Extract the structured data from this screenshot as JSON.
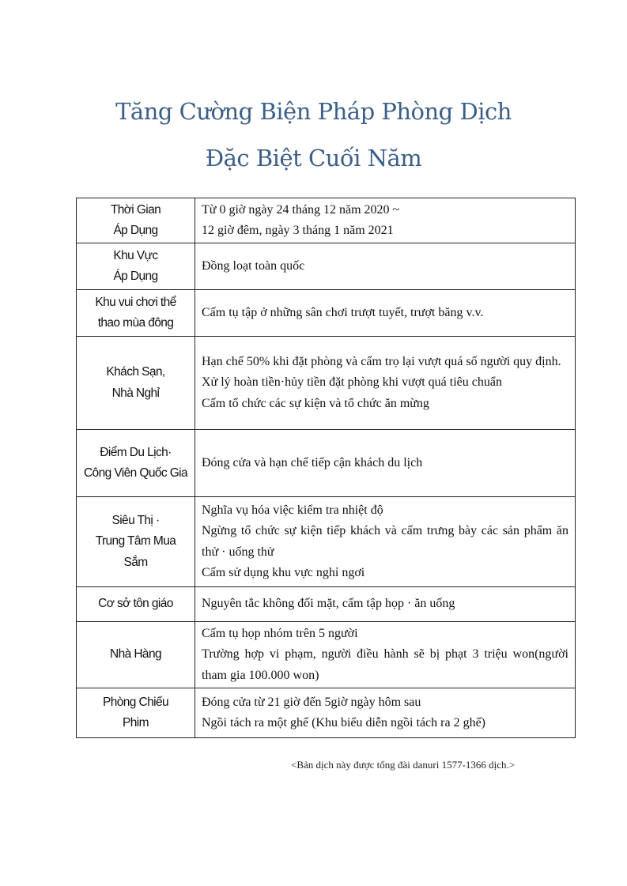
{
  "title_lines": [
    "Tăng Cường Biện Pháp Phòng Dịch",
    "Đặc Biệt Cuối Năm"
  ],
  "rows": [
    {
      "label": [
        "Thời Gian",
        "Áp Dụng"
      ],
      "content": [
        "Từ 0 giờ ngày 24 tháng 12 năm 2020 ~",
        "12 giờ đêm, ngày 3 tháng 1 năm 2021"
      ]
    },
    {
      "label": [
        "Khu Vực",
        "Áp Dụng"
      ],
      "content": [
        "Đồng loạt toàn quốc"
      ]
    },
    {
      "label": [
        "Khu vui chơi thể",
        "thao mùa đông"
      ],
      "content": [
        "Cấm tụ tập ở những sân chơi trượt tuyết, trượt băng v.v."
      ]
    },
    {
      "label": [
        "Khách Sạn,",
        "Nhà Nghỉ"
      ],
      "content": [
        "Hạn chế 50% khi đặt phòng và cấm trọ lại vượt quá số người quy định.",
        "Xử lý hoàn tiền·hủy tiền đặt phòng khi vượt quá tiêu chuẩn",
        "Cấm tổ chức các sự kiện và tổ chức ăn mừng"
      ]
    },
    {
      "label": [
        "Điểm Du Lịch·",
        "Công Viên Quốc Gia"
      ],
      "content": [
        "Đóng cửa và hạn chế tiếp cận khách du lịch"
      ]
    },
    {
      "label": [
        "Siêu Thị ·",
        "Trung Tâm Mua Sắm"
      ],
      "content": [
        "Nghĩa vụ hóa việc kiểm tra nhiệt độ",
        "Ngừng tổ chức sự kiện tiếp khách và cấm trưng bày các sản phẩm ăn thử · uống thử",
        "Cấm sử dụng khu vực nghỉ ngơi"
      ]
    },
    {
      "label": [
        "Cơ sở tôn giáo"
      ],
      "content": [
        "Nguyên tắc không đối mặt, cấm tập họp · ăn uống"
      ]
    },
    {
      "label": [
        "Nhà Hàng"
      ],
      "content": [
        "Cấm tụ họp nhóm trên 5 người",
        "Trường hợp vi phạm, người điều hành sẽ bị phạt 3 triệu won(người tham gia 100.000 won)"
      ]
    },
    {
      "label": [
        "Phòng Chiếu",
        "Phim"
      ],
      "content": [
        "Đóng cửa từ 21 giờ đến 5giờ ngày hôm sau",
        "Ngồi tách ra một ghế (Khu biểu diễn ngồi tách ra 2 ghế)"
      ]
    }
  ],
  "footnote": "<Bản dịch này được tổng đài danuri 1577-1366 dịch.>",
  "colors": {
    "title": "#3c5f88"
  }
}
